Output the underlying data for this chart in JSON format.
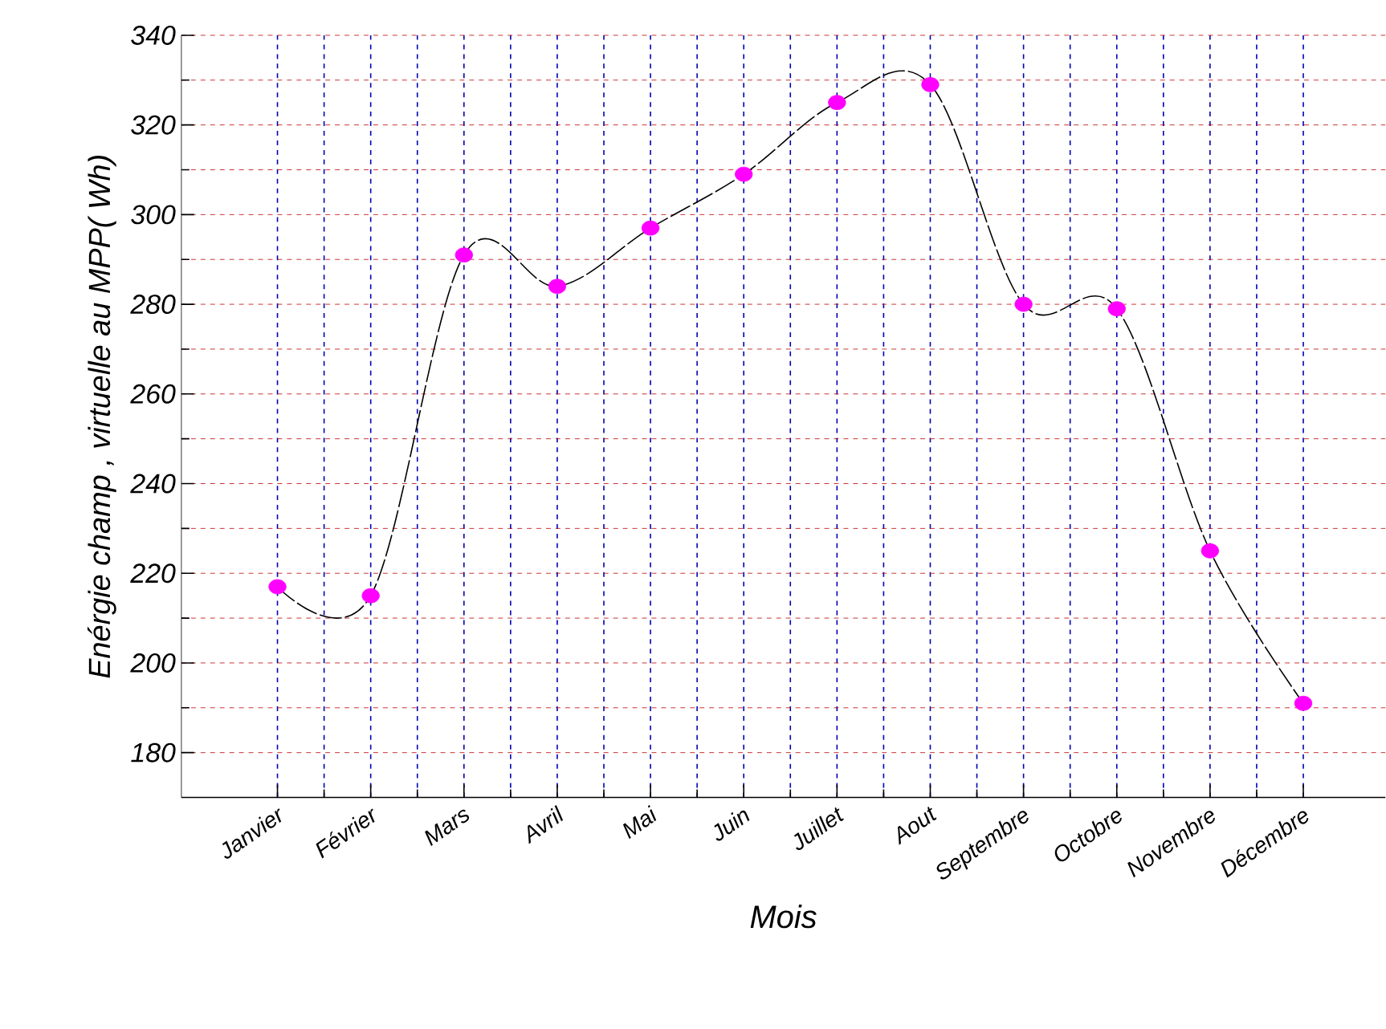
{
  "chart_data": {
    "type": "line",
    "xlabel": "Mois",
    "ylabel": "Enérgie champ , virtuelle au MPP(  Wh)",
    "categories": [
      "Janvier",
      "Février",
      "Mars",
      "Avril",
      "Mai",
      "Juin",
      "Juillet",
      "Aout",
      "Septembre",
      "Octobre",
      "Novembre",
      "Décembre"
    ],
    "series": [
      {
        "color": "#ff00ff",
        "values": [
          217,
          215,
          291,
          284,
          297,
          309,
          325,
          329,
          280,
          279,
          225,
          191
        ]
      }
    ],
    "ylim": [
      170,
      340
    ],
    "yticks": [
      180,
      200,
      220,
      240,
      260,
      280,
      300,
      320,
      340
    ],
    "grid": true,
    "marker": "circle",
    "line_style": "dashed"
  }
}
